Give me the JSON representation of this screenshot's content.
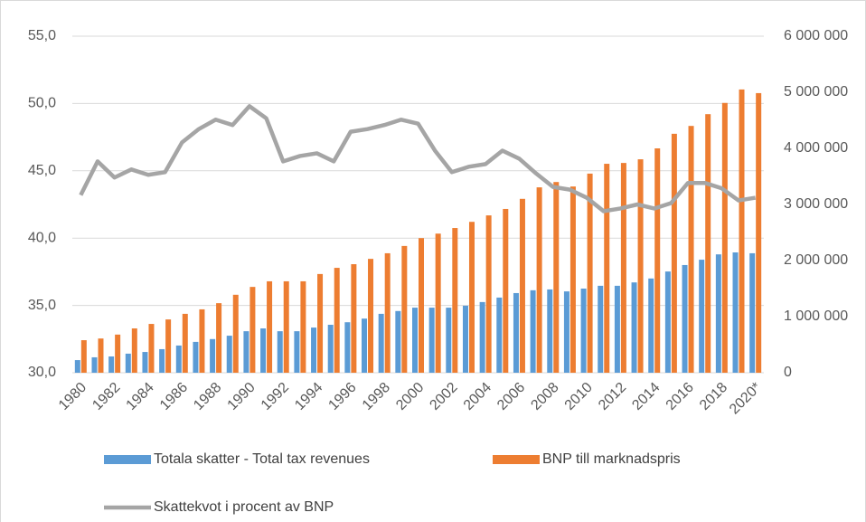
{
  "chart_data": {
    "type": "bar",
    "categories": [
      "1980",
      null,
      "1982",
      null,
      "1984",
      null,
      "1986",
      null,
      "1988",
      null,
      "1990",
      null,
      "1992",
      null,
      "1994",
      null,
      "1996",
      null,
      "1998",
      null,
      "2000",
      null,
      "2002",
      null,
      "2004",
      null,
      "2006",
      null,
      "2008",
      null,
      "2010",
      null,
      "2012",
      null,
      "2014",
      null,
      "2016",
      null,
      "2018",
      null,
      "2020*"
    ],
    "series": [
      {
        "name": "Totala skatter - Total tax revenues",
        "color": "#5b9bd5",
        "type": "bar",
        "axis": "y2",
        "values": [
          225000,
          275000,
          290000,
          340000,
          370000,
          420000,
          485000,
          550000,
          600000,
          660000,
          740000,
          790000,
          740000,
          740000,
          805000,
          855000,
          900000,
          965000,
          1050000,
          1100000,
          1160000,
          1160000,
          1160000,
          1195000,
          1260000,
          1340000,
          1420000,
          1470000,
          1485000,
          1450000,
          1500000,
          1550000,
          1550000,
          1610000,
          1680000,
          1805000,
          1920000,
          2015000,
          2110000,
          2145000,
          2130000
        ]
      },
      {
        "name": "BNP till marknadspris",
        "color": "#ed7d31",
        "type": "bar",
        "axis": "y2",
        "values": [
          580000,
          610000,
          680000,
          790000,
          870000,
          950000,
          1050000,
          1130000,
          1240000,
          1390000,
          1530000,
          1630000,
          1630000,
          1630000,
          1760000,
          1870000,
          1935000,
          2030000,
          2130000,
          2260000,
          2400000,
          2480000,
          2580000,
          2690000,
          2805000,
          2920000,
          3100000,
          3305000,
          3400000,
          3320000,
          3550000,
          3725000,
          3740000,
          3805000,
          4000000,
          4260000,
          4400000,
          4610000,
          4810000,
          5050000,
          4985000
        ]
      },
      {
        "name": "Skattekvot i procent av BNP",
        "color": "#a5a5a5",
        "type": "line",
        "axis": "y",
        "values": [
          43.2,
          45.7,
          44.5,
          45.1,
          44.7,
          44.9,
          47.1,
          48.1,
          48.8,
          48.4,
          49.8,
          48.9,
          45.7,
          46.1,
          46.3,
          45.7,
          47.9,
          48.1,
          48.4,
          48.8,
          48.5,
          46.5,
          44.9,
          45.3,
          45.5,
          46.5,
          45.9,
          44.8,
          43.8,
          43.6,
          43.0,
          42.0,
          42.2,
          42.5,
          42.2,
          42.6,
          44.1,
          44.1,
          43.7,
          42.8,
          43.0
        ]
      }
    ],
    "ylim": [
      30,
      55
    ],
    "yticks": [
      {
        "value": 30,
        "label": "30,0"
      },
      {
        "value": 35,
        "label": "35,0"
      },
      {
        "value": 40,
        "label": "40,0"
      },
      {
        "value": 45,
        "label": "45,0"
      },
      {
        "value": 50,
        "label": "50,0"
      },
      {
        "value": 55,
        "label": "55,0"
      }
    ],
    "y2lim": [
      0,
      6000000
    ],
    "y2ticks": [
      0,
      {
        "value": 1000000,
        "label": "1 000 000"
      },
      {
        "value": 2000000,
        "label": "2 000 000"
      },
      {
        "value": 3000000,
        "label": "3 000 000"
      },
      {
        "value": 4000000,
        "label": "4 000 000"
      },
      {
        "value": 5000000,
        "label": "5 000 000"
      },
      {
        "value": 6000000,
        "label": "6 000 000"
      }
    ],
    "grid": true
  }
}
